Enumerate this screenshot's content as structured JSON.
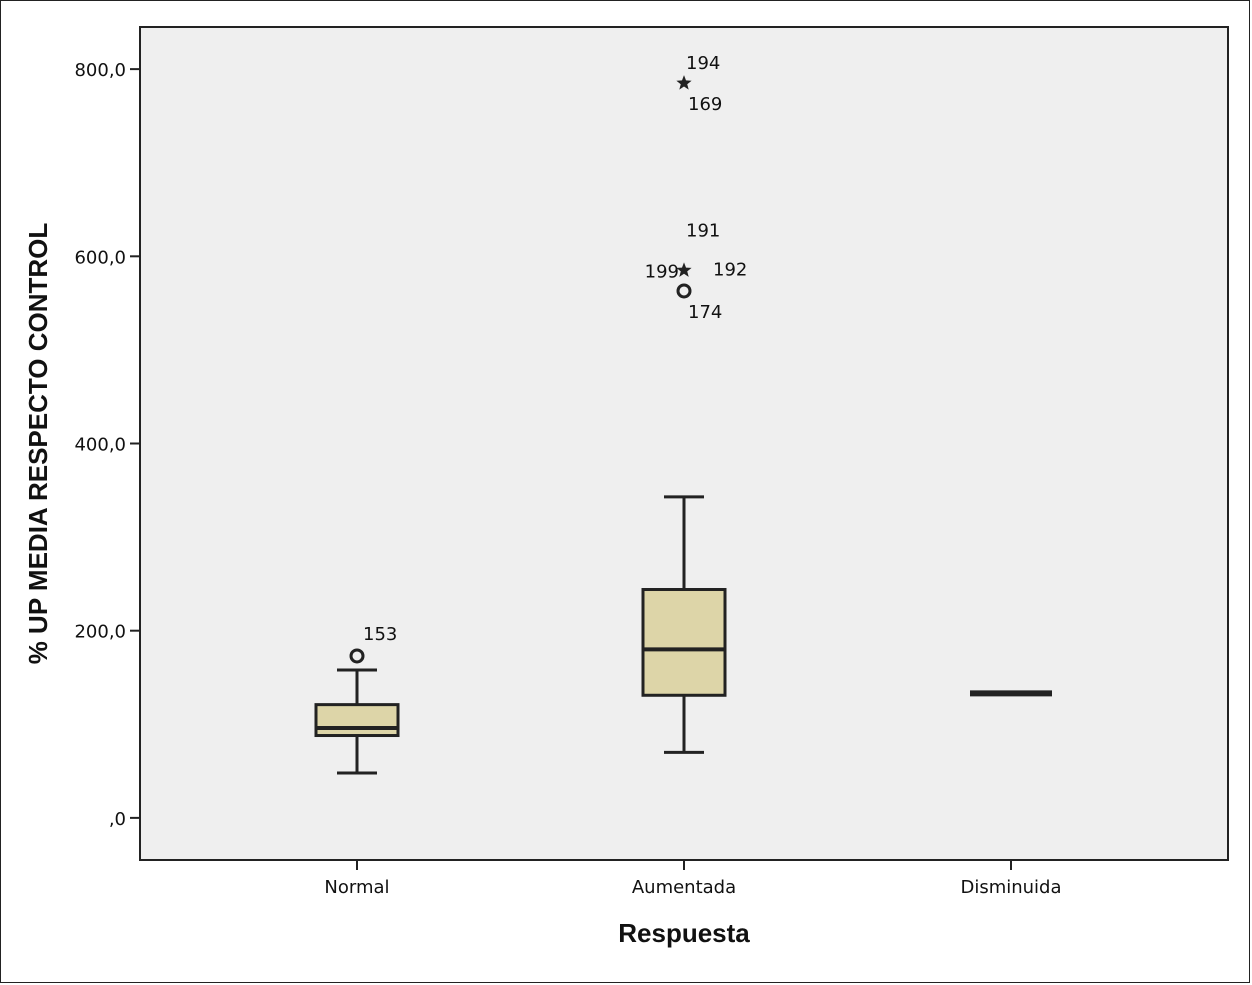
{
  "chart_data": {
    "type": "boxplot",
    "xlabel": "Respuesta",
    "ylabel": "% UP MEDIA RESPECTO CONTROL",
    "ylim": [
      -45,
      845
    ],
    "yticks": [
      0,
      200,
      400,
      600,
      800
    ],
    "ytick_labels": [
      ",0",
      "200,0",
      "400,0",
      "600,0",
      "800,0"
    ],
    "grid": false,
    "colors": {
      "plot_bg": "#efefef",
      "box_fill": "#ddd5a8",
      "stroke": "#222222"
    },
    "categories": [
      "Normal",
      "Aumentada",
      "Disminuida"
    ],
    "boxes": [
      {
        "category": "Normal",
        "min": 48,
        "q1": 88,
        "median": 96,
        "q3": 121,
        "max": 158
      },
      {
        "category": "Aumentada",
        "min": 70,
        "q1": 131,
        "median": 180,
        "q3": 244,
        "max": 343
      },
      {
        "category": "Disminuida",
        "min": 133,
        "q1": 133,
        "median": 133,
        "q3": 133,
        "max": 133
      }
    ],
    "outliers": [
      {
        "category": "Normal",
        "value": 173,
        "marker": "circle",
        "labels": [
          "153"
        ]
      },
      {
        "category": "Aumentada",
        "value": 785,
        "marker": "star",
        "labels": [
          "194",
          "169"
        ]
      },
      {
        "category": "Aumentada",
        "value": 585,
        "marker": "star",
        "labels": [
          "191",
          "199",
          "192"
        ]
      },
      {
        "category": "Aumentada",
        "value": 563,
        "marker": "circle",
        "labels": [
          "174"
        ]
      }
    ]
  }
}
